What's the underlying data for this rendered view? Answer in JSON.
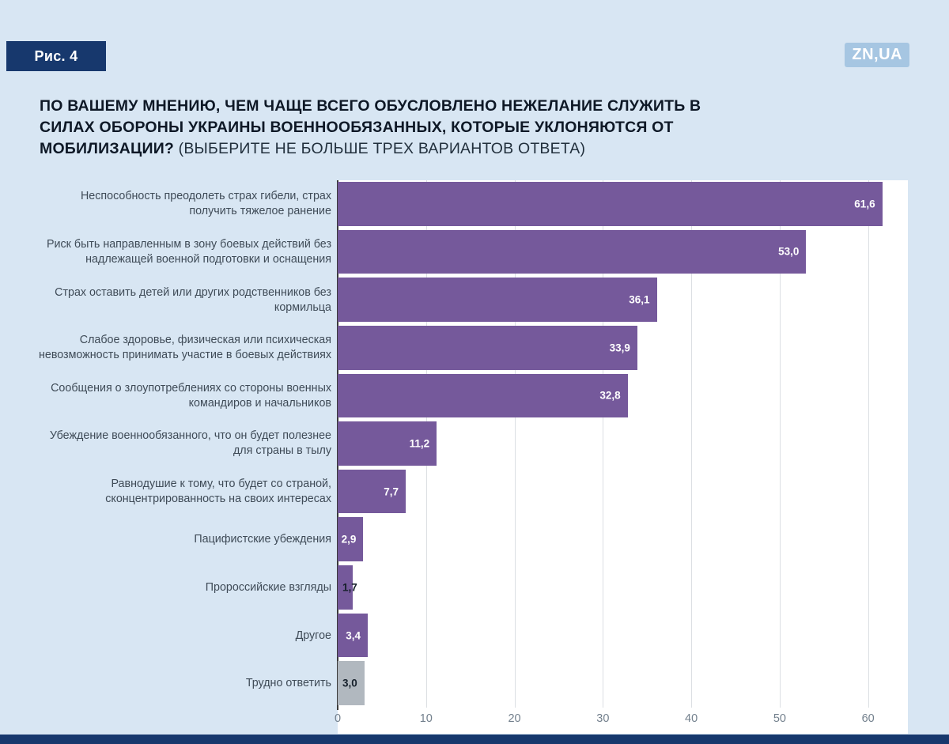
{
  "header": {
    "figure_label": "Рис. 4",
    "logo": "ZN,UA"
  },
  "title": {
    "question": "ПО ВАШЕМУ МНЕНИЮ, ЧЕМ ЧАЩЕ ВСЕГО ОБУСЛОВЛЕНО НЕЖЕЛАНИЕ СЛУЖИТЬ В СИЛАХ ОБОРОНЫ УКРАИНЫ ВОЕННООБЯЗАННЫХ, КОТОРЫЕ УКЛОНЯЮТСЯ ОТ МОБИЛИЗАЦИИ?",
    "note": "(ВЫБЕРИТЕ НЕ БОЛЬШЕ ТРЕХ ВАРИАНТОВ ОТВЕТА)"
  },
  "colors": {
    "background": "#d8e6f3",
    "navy": "#17386d",
    "bar_purple": "#75599b",
    "bar_gray": "#b1b8bf",
    "axis": "#3a3a3a",
    "gridline": "#dcdfe3"
  },
  "chart_data": {
    "type": "bar",
    "orientation": "horizontal",
    "title": "По вашему мнению, чем чаще всего обусловлено нежелание служить в Силах обороны Украины военнообязанных, которые уклоняются от мобилизации? (выберите не больше трех вариантов ответа)",
    "categories": [
      "Неспособность преодолеть страх гибели, страх получить тяжелое ранение",
      "Риск быть направленным в зону боевых действий без надлежащей военной подготовки и оснащения",
      "Страх оставить детей или других родственников без кормильца",
      "Слабое здоровье, физическая или психическая невозможность принимать участие в боевых действиях",
      "Сообщения о злоупотреблениях со стороны военных командиров и начальников",
      "Убеждение военнообязанного, что он будет полезнее для страны в тылу",
      "Равнодушие к тому, что будет со страной, сконцентрированность на своих интересах",
      "Пацифистские убеждения",
      "Пророссийские взгляды",
      "Другое",
      "Трудно ответить"
    ],
    "values": [
      61.6,
      53.0,
      36.1,
      33.9,
      32.8,
      11.2,
      7.7,
      2.9,
      1.7,
      3.4,
      3.0
    ],
    "value_labels": [
      "61,6",
      "53,0",
      "36,1",
      "33,9",
      "32,8",
      "11,2",
      "7,7",
      "2,9",
      "1,7",
      "3,4",
      "3,0"
    ],
    "bar_colors": [
      "#75599b",
      "#75599b",
      "#75599b",
      "#75599b",
      "#75599b",
      "#75599b",
      "#75599b",
      "#75599b",
      "#75599b",
      "#75599b",
      "#b1b8bf"
    ],
    "value_label_styles": [
      "light",
      "light",
      "light",
      "light",
      "light",
      "light",
      "light",
      "light",
      "dark",
      "light",
      "dark"
    ],
    "x_ticks": [
      0,
      10,
      20,
      30,
      40,
      50,
      60
    ],
    "xlim": [
      0,
      64.5
    ],
    "xlabel": "",
    "ylabel": "",
    "grid": true,
    "legend": null
  }
}
